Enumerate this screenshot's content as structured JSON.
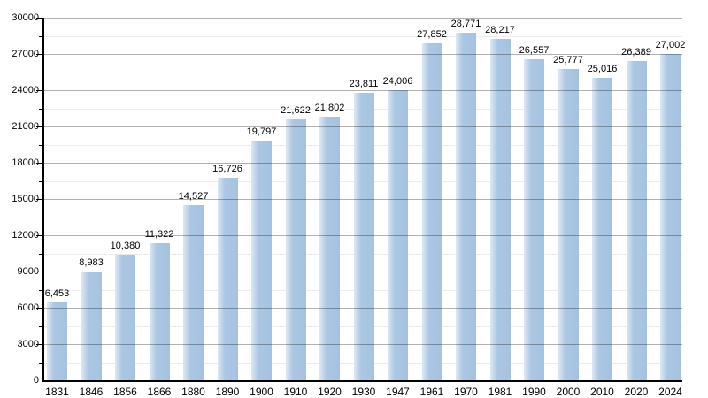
{
  "chart_data": {
    "type": "bar",
    "title": "",
    "xlabel": "",
    "ylabel": "",
    "categories": [
      "1831",
      "1846",
      "1856",
      "1866",
      "1880",
      "1890",
      "1900",
      "1910",
      "1920",
      "1930",
      "1947",
      "1961",
      "1970",
      "1981",
      "1990",
      "2000",
      "2010",
      "2020",
      "2024"
    ],
    "values": [
      6453,
      8983,
      10380,
      11322,
      14527,
      16726,
      19797,
      21622,
      21802,
      23811,
      24006,
      27852,
      28771,
      28217,
      26557,
      25777,
      25016,
      26389,
      27002
    ],
    "value_labels": [
      "6,453",
      "8,983",
      "10,380",
      "11,322",
      "14,527",
      "16,726",
      "19,797",
      "21,622",
      "21,802",
      "23,811",
      "24,006",
      "27,852",
      "28,771",
      "28,217",
      "26,557",
      "25,777",
      "25,016",
      "26,389",
      "27,002"
    ],
    "y_axis": {
      "min": 0,
      "max": 30000,
      "major_step": 3000,
      "minor_step": 1500,
      "tick_labels": [
        "0",
        "3000",
        "6000",
        "9000",
        "12000",
        "15000",
        "18000",
        "21000",
        "24000",
        "27000",
        "30000"
      ]
    },
    "grid": true,
    "legend": false,
    "colors": {
      "bar_fill": "#a5c2e0",
      "bar_fill_mid": "#abc7e3",
      "bar_highlight": "#dde8f4",
      "grid_major": "rgba(0,0,0,0.30)",
      "grid_minor": "#ececec",
      "axis": "#000000",
      "text": "#000000",
      "background": "#ffffff"
    }
  }
}
